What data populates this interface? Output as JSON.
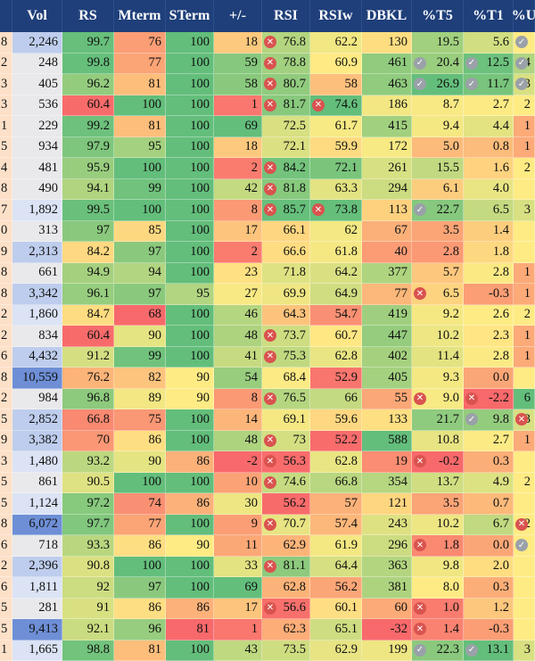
{
  "headers": [
    "Vol",
    "RS",
    "Mterm",
    "STerm",
    "+/-",
    "RSI",
    "RSIw",
    "DBKL",
    "%T5",
    "%T1",
    "%U"
  ],
  "header_edge": "",
  "rows": [
    [
      "8",
      "2,246",
      "99.7",
      "76",
      "100",
      "18",
      "76.8",
      "62.2",
      "130",
      "19.5",
      "5.6",
      ""
    ],
    [
      "2",
      "248",
      "99.8",
      "77",
      "100",
      "59",
      "78.8",
      "60.9",
      "461",
      "20.4",
      "12.5",
      "4"
    ],
    [
      "3",
      "405",
      "96.2",
      "81",
      "100",
      "58",
      "80.7",
      "58",
      "463",
      "26.9",
      "11.7",
      "3"
    ],
    [
      "3",
      "536",
      "60.4",
      "100",
      "100",
      "1",
      "81.7",
      "74.6",
      "186",
      "8.7",
      "2.7",
      "2"
    ],
    [
      "1",
      "229",
      "99.2",
      "81",
      "100",
      "69",
      "72.5",
      "61.7",
      "415",
      "9.4",
      "4.4",
      "1"
    ],
    [
      "5",
      "934",
      "97.9",
      "95",
      "100",
      "18",
      "72.1",
      "59.9",
      "172",
      "5.0",
      "0.8",
      "1"
    ],
    [
      "4",
      "481",
      "95.9",
      "100",
      "100",
      "2",
      "84.2",
      "72.1",
      "261",
      "15.5",
      "1.6",
      "2"
    ],
    [
      "8",
      "490",
      "94.1",
      "99",
      "100",
      "42",
      "81.8",
      "63.3",
      "294",
      "6.1",
      "4.0",
      ""
    ],
    [
      "7",
      "1,892",
      "99.5",
      "100",
      "100",
      "8",
      "85.7",
      "73.8",
      "113",
      "22.7",
      "6.5",
      "3"
    ],
    [
      "0",
      "313",
      "97",
      "85",
      "100",
      "17",
      "66.1",
      "62",
      "67",
      "3.5",
      "1.4",
      ""
    ],
    [
      "9",
      "2,313",
      "84.2",
      "97",
      "100",
      "2",
      "66.6",
      "61.8",
      "40",
      "2.8",
      "1.8",
      ""
    ],
    [
      "8",
      "661",
      "94.9",
      "94",
      "100",
      "23",
      "71.8",
      "64.2",
      "377",
      "5.7",
      "2.8",
      "1"
    ],
    [
      "8",
      "3,342",
      "96.1",
      "97",
      "95",
      "27",
      "69.9",
      "64.9",
      "77",
      "6.5",
      "-0.3",
      "1"
    ],
    [
      "2",
      "1,860",
      "84.7",
      "68",
      "100",
      "46",
      "64.3",
      "54.7",
      "419",
      "9.2",
      "2.6",
      "2"
    ],
    [
      "2",
      "834",
      "60.4",
      "90",
      "100",
      "48",
      "73.7",
      "60.7",
      "447",
      "10.2",
      "2.3",
      "1"
    ],
    [
      "6",
      "4,432",
      "91.2",
      "99",
      "100",
      "41",
      "75.3",
      "62.8",
      "402",
      "11.4",
      "2.8",
      "1"
    ],
    [
      "8",
      "10,559",
      "76.2",
      "82",
      "90",
      "54",
      "68.4",
      "52.9",
      "405",
      "9.3",
      "0.0",
      ""
    ],
    [
      "2",
      "984",
      "96.8",
      "89",
      "90",
      "8",
      "76.5",
      "66",
      "55",
      "9.0",
      "-2.2",
      "6"
    ],
    [
      "5",
      "2,852",
      "66.8",
      "75",
      "100",
      "14",
      "69.1",
      "59.6",
      "133",
      "21.7",
      "9.8",
      "3"
    ],
    [
      "9",
      "3,382",
      "70",
      "86",
      "100",
      "48",
      "73",
      "52.2",
      "588",
      "10.8",
      "2.7",
      "1"
    ],
    [
      "3",
      "1,480",
      "93.2",
      "90",
      "86",
      "-2",
      "56.3",
      "62.8",
      "19",
      "-0.2",
      "0.3",
      ""
    ],
    [
      "5",
      "861",
      "90.5",
      "100",
      "100",
      "10",
      "74.6",
      "66.8",
      "354",
      "13.7",
      "4.9",
      "2"
    ],
    [
      "5",
      "1,124",
      "97.2",
      "74",
      "86",
      "30",
      "56.2",
      "57",
      "121",
      "3.5",
      "0.7",
      ""
    ],
    [
      "8",
      "6,072",
      "97.7",
      "77",
      "100",
      "9",
      "70.7",
      "57.4",
      "243",
      "10.2",
      "6.7",
      "2"
    ],
    [
      "6",
      "718",
      "93.3",
      "86",
      "90",
      "11",
      "62.9",
      "61.9",
      "296",
      "1.8",
      "0.0",
      ""
    ],
    [
      "2",
      "2,396",
      "90.8",
      "100",
      "100",
      "33",
      "81.1",
      "64.4",
      "363",
      "9.8",
      "2.0",
      ""
    ],
    [
      "6",
      "1,811",
      "92",
      "97",
      "100",
      "69",
      "62.8",
      "56.2",
      "381",
      "8.0",
      "0.3",
      ""
    ],
    [
      "5",
      "281",
      "91",
      "86",
      "86",
      "17",
      "56.6",
      "60.1",
      "60",
      "1.0",
      "1.2",
      ""
    ],
    [
      "5",
      "9,413",
      "92.1",
      "96",
      "81",
      "1",
      "62.3",
      "65.1",
      "-32",
      "1.4",
      "-0.3",
      ""
    ],
    [
      "1",
      "1,665",
      "98.8",
      "81",
      "100",
      "43",
      "73.5",
      "62.9",
      "199",
      "22.3",
      "13.1",
      "3"
    ]
  ],
  "badges": {
    "rsi_x": [
      0,
      1,
      2,
      3,
      6,
      7,
      8,
      14,
      15,
      17,
      19,
      20,
      21,
      23,
      25,
      27
    ],
    "rsiw_x": [
      3,
      8
    ],
    "t5_ok": [
      1,
      2,
      8,
      29
    ],
    "t5_x": [
      12,
      17,
      20,
      24,
      27,
      28
    ],
    "t1_ok": [
      1,
      2,
      18,
      29
    ],
    "t1_x": [
      17
    ],
    "u_ok": [
      0,
      1,
      2,
      24
    ],
    "u_x": [
      18,
      23
    ]
  },
  "colors": {
    "header_bg": "#1f3f7a",
    "header_text": "#ffffff",
    "green_strong": "#2ea84f",
    "green": "#63be7b",
    "yellow": "#ffeb84",
    "orange": "#fbaa77",
    "red": "#f8696b",
    "blue_light": "#c9d6ef",
    "blue": "#6e8fd6"
  }
}
